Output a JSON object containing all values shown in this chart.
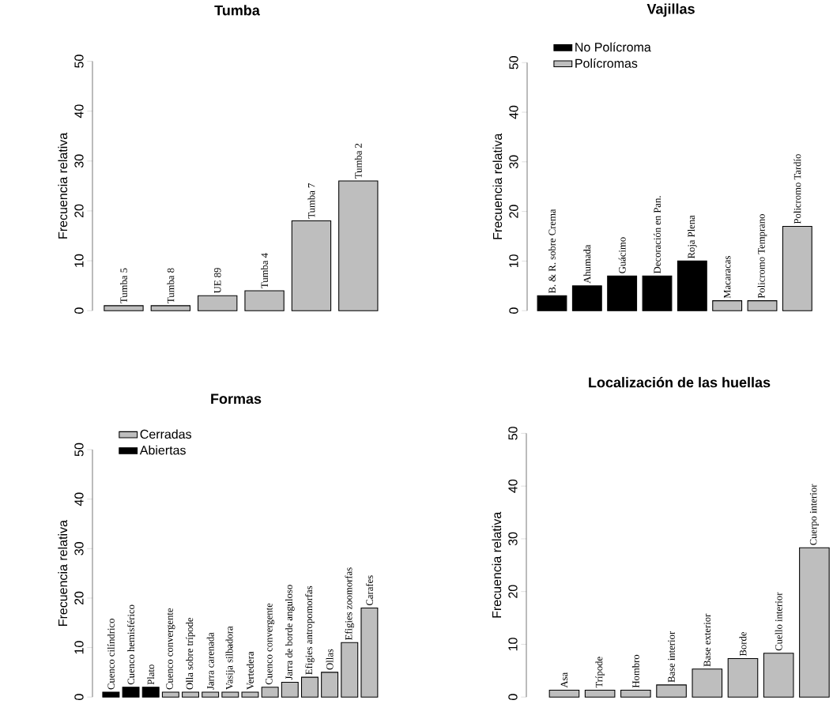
{
  "chart_data": [
    {
      "type": "bar",
      "title": "Tumba",
      "ylabel": "Frecuencia relativa",
      "categories": [
        "Tumba 5",
        "Tumba 8",
        "UE 89",
        "Tumba 4",
        "Tumba 7",
        "Tumba 2"
      ],
      "values": [
        1,
        1,
        3,
        4,
        18,
        26
      ],
      "color": "#bebebe",
      "ylim": [
        0,
        50
      ],
      "yticks": [
        0,
        10,
        20,
        30,
        40,
        50
      ],
      "grid": false
    },
    {
      "type": "bar",
      "title": "Vajillas",
      "ylabel": "Frecuencia relativa",
      "categories": [
        "B. & R. sobre Crema",
        "Ahumada",
        "Guácimo",
        "Decoración en Pan.",
        "Roja Plena",
        "Macaracas",
        "Policromo Temprano",
        "Policromo Tardío"
      ],
      "series": [
        {
          "name": "No Polícroma",
          "color": "#000000",
          "values": [
            3,
            5,
            7,
            7,
            10,
            null,
            null,
            null
          ]
        },
        {
          "name": "Polícromas",
          "color": "#bebebe",
          "values": [
            null,
            null,
            null,
            null,
            null,
            2,
            2,
            17
          ]
        }
      ],
      "ylim": [
        0,
        50
      ],
      "yticks": [
        0,
        10,
        20,
        30,
        40,
        50
      ],
      "legend": "top left",
      "grid": false
    },
    {
      "type": "bar",
      "title": "Formas",
      "ylabel": "Frecuencia relativa",
      "categories": [
        "Cuenco cilíndrico",
        "Cuenco hemisférico",
        "Plato",
        "Cuenco convergente",
        "Olla sobre trípode",
        "Jarra carenada",
        "Vasija silbadora",
        "Vertedera",
        "Cuenco convergente",
        "Jarra de borde anguloso",
        "Efigies antropomorfas",
        "Ollas",
        "Efigies zoomorfas",
        "Carafes"
      ],
      "series": [
        {
          "name": "Cerradas",
          "color": "#bebebe",
          "values": [
            null,
            null,
            null,
            1,
            1,
            1,
            1,
            1,
            2,
            3,
            4,
            5,
            11,
            18
          ]
        },
        {
          "name": "Abiertas",
          "color": "#000000",
          "values": [
            1,
            2,
            2,
            null,
            null,
            null,
            null,
            null,
            null,
            null,
            null,
            null,
            null,
            null
          ]
        }
      ],
      "ylim": [
        0,
        50
      ],
      "yticks": [
        0,
        10,
        20,
        30,
        40,
        50
      ],
      "legend": "top left",
      "grid": false
    },
    {
      "type": "bar",
      "title": "Localización de las huellas",
      "ylabel": "Frecuencia relativa",
      "categories": [
        "Asa",
        "Trípode",
        "Hombro",
        "Base interior",
        "Base exterior",
        "Borde",
        "Cuello interior",
        "Cuerpo interior"
      ],
      "values": [
        1.3,
        1.3,
        1.3,
        2.3,
        5.3,
        7.3,
        8.3,
        28.3
      ],
      "color": "#bebebe",
      "ylim": [
        0,
        50
      ],
      "yticks": [
        0,
        10,
        20,
        30,
        40,
        50
      ],
      "grid": false
    }
  ]
}
